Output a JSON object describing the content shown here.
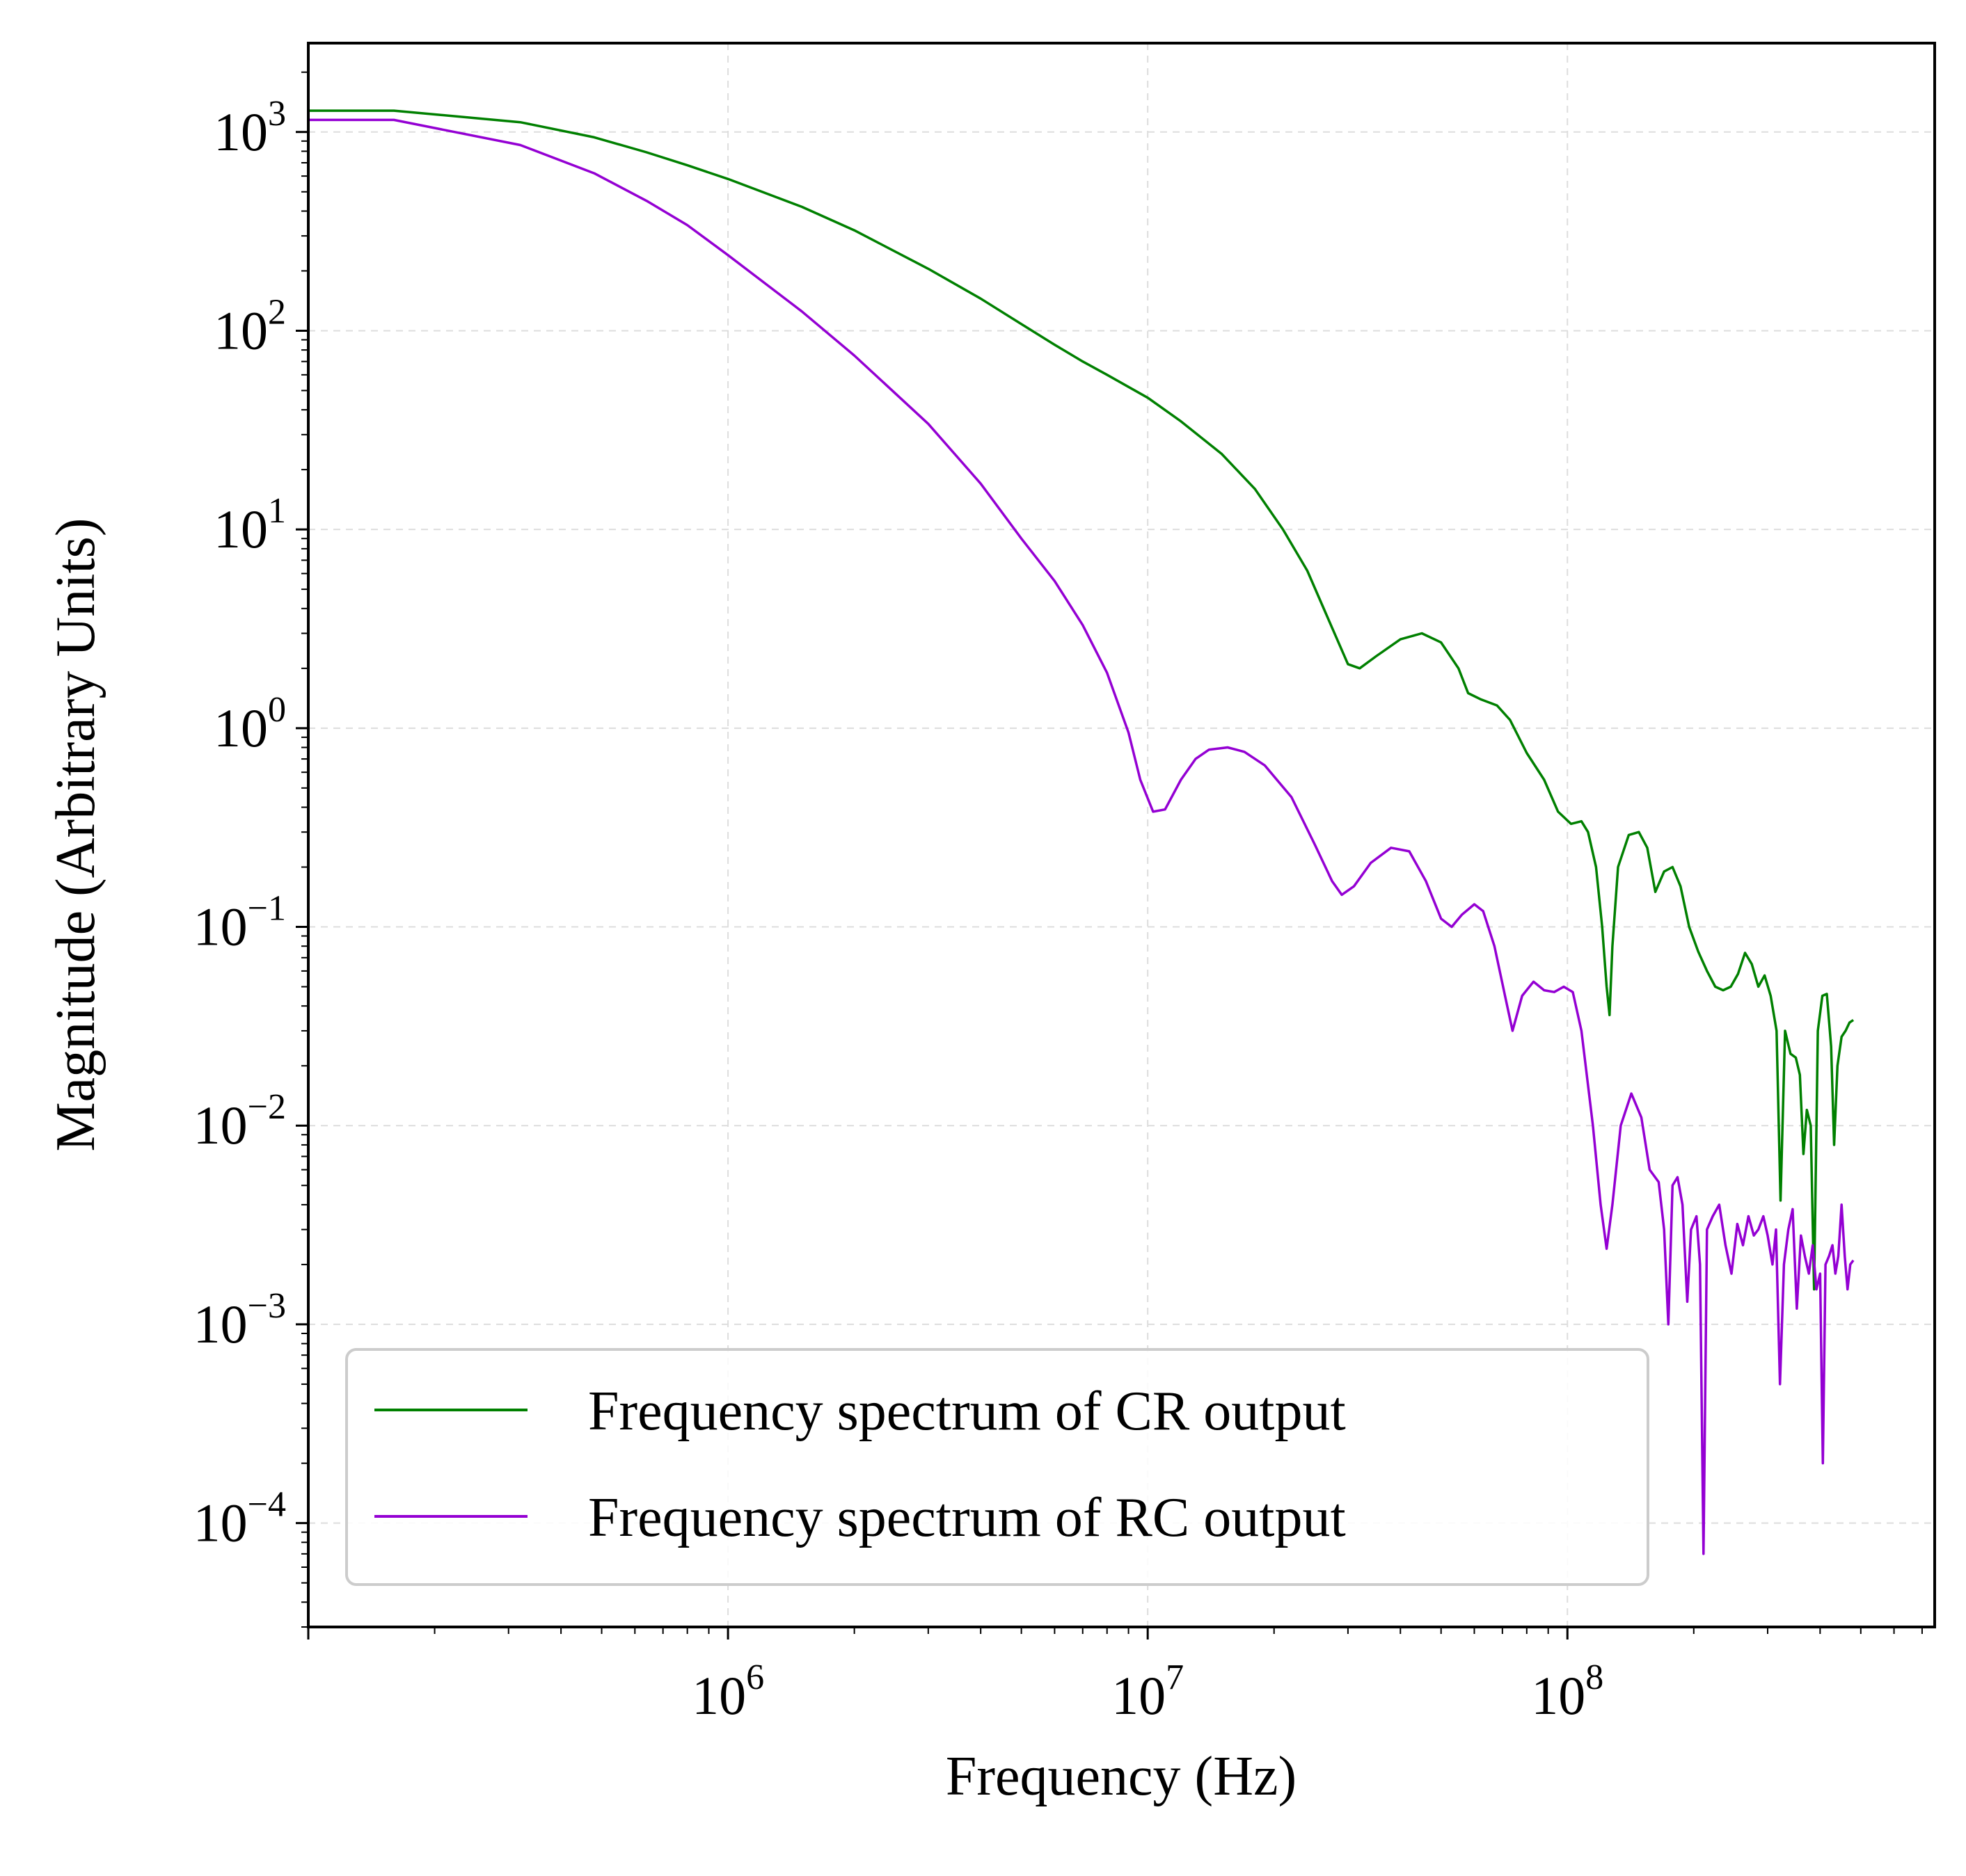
{
  "chart_data": {
    "type": "line",
    "xlabel": "Frequency (Hz)",
    "ylabel": "Magnitude (Arbitrary Units)",
    "xscale": "log",
    "yscale": "log",
    "xlim": [
      100000,
      750000000
    ],
    "ylim": [
      3e-05,
      2800
    ],
    "grid": true,
    "legend_position": "lower-left",
    "x_ticks": [
      {
        "value": 1000000,
        "base": "10",
        "exp": "6"
      },
      {
        "value": 10000000,
        "base": "10",
        "exp": "7"
      },
      {
        "value": 100000000,
        "base": "10",
        "exp": "8"
      }
    ],
    "y_ticks": [
      {
        "value": 0.0001,
        "base": "10",
        "exp": "−4"
      },
      {
        "value": 0.001,
        "base": "10",
        "exp": "−3"
      },
      {
        "value": 0.01,
        "base": "10",
        "exp": "−2"
      },
      {
        "value": 0.1,
        "base": "10",
        "exp": "−1"
      },
      {
        "value": 1,
        "base": "10",
        "exp": "0"
      },
      {
        "value": 10,
        "base": "10",
        "exp": "1"
      },
      {
        "value": 100,
        "base": "10",
        "exp": "2"
      },
      {
        "value": 1000,
        "base": "10",
        "exp": "3"
      }
    ],
    "series": [
      {
        "name": "Frequency spectrum of CR output",
        "color": "#008000",
        "points": [
          [
            100000,
            1280
          ],
          [
            160000,
            1280
          ],
          [
            320000,
            1120
          ],
          [
            480000,
            940
          ],
          [
            640000,
            790
          ],
          [
            800000,
            680
          ],
          [
            1000000,
            580
          ],
          [
            1500000,
            420
          ],
          [
            2000000,
            320
          ],
          [
            3000000,
            205
          ],
          [
            4000000,
            145
          ],
          [
            5000000,
            108
          ],
          [
            6000000,
            85
          ],
          [
            7000000,
            70
          ],
          [
            8000000,
            60
          ],
          [
            10000000,
            46
          ],
          [
            12000000,
            35
          ],
          [
            15000000,
            24
          ],
          [
            18000000,
            16
          ],
          [
            21000000,
            10
          ],
          [
            24000000,
            6.2
          ],
          [
            27000000,
            3.5
          ],
          [
            30000000,
            2.1
          ],
          [
            32000000,
            2.0
          ],
          [
            35000000,
            2.3
          ],
          [
            40000000,
            2.8
          ],
          [
            45000000,
            3.0
          ],
          [
            50000000,
            2.7
          ],
          [
            55000000,
            2.0
          ],
          [
            58000000,
            1.5
          ],
          [
            62000000,
            1.4
          ],
          [
            68000000,
            1.3
          ],
          [
            73000000,
            1.1
          ],
          [
            80000000,
            0.75
          ],
          [
            88000000,
            0.55
          ],
          [
            95000000,
            0.38
          ],
          [
            102000000,
            0.33
          ],
          [
            108000000,
            0.34
          ],
          [
            112000000,
            0.3
          ],
          [
            117000000,
            0.2
          ],
          [
            121000000,
            0.1
          ],
          [
            124000000,
            0.05
          ],
          [
            126000000,
            0.036
          ],
          [
            128000000,
            0.08
          ],
          [
            132000000,
            0.2
          ],
          [
            140000000,
            0.29
          ],
          [
            148000000,
            0.3
          ],
          [
            155000000,
            0.25
          ],
          [
            162000000,
            0.15
          ],
          [
            170000000,
            0.19
          ],
          [
            178000000,
            0.2
          ],
          [
            186000000,
            0.16
          ],
          [
            195000000,
            0.1
          ],
          [
            205000000,
            0.075
          ],
          [
            215000000,
            0.06
          ],
          [
            225000000,
            0.05
          ],
          [
            235000000,
            0.048
          ],
          [
            245000000,
            0.05
          ],
          [
            255000000,
            0.058
          ],
          [
            265000000,
            0.074
          ],
          [
            275000000,
            0.065
          ],
          [
            285000000,
            0.05
          ],
          [
            295000000,
            0.057
          ],
          [
            305000000,
            0.045
          ],
          [
            315000000,
            0.03
          ],
          [
            322000000,
            0.0042
          ],
          [
            330000000,
            0.03
          ],
          [
            340000000,
            0.023
          ],
          [
            350000000,
            0.022
          ],
          [
            358000000,
            0.018
          ],
          [
            365000000,
            0.0072
          ],
          [
            372000000,
            0.012
          ],
          [
            380000000,
            0.01
          ],
          [
            387000000,
            0.0015
          ],
          [
            395000000,
            0.03
          ],
          [
            405000000,
            0.045
          ],
          [
            415000000,
            0.046
          ],
          [
            425000000,
            0.025
          ],
          [
            432000000,
            0.008
          ],
          [
            440000000,
            0.02
          ],
          [
            450000000,
            0.028
          ],
          [
            460000000,
            0.03
          ],
          [
            470000000,
            0.033
          ],
          [
            480000000,
            0.034
          ]
        ]
      },
      {
        "name": "Frequency spectrum of RC output",
        "color": "#9400D3",
        "points": [
          [
            100000,
            1150
          ],
          [
            160000,
            1150
          ],
          [
            320000,
            860
          ],
          [
            480000,
            620
          ],
          [
            640000,
            450
          ],
          [
            800000,
            340
          ],
          [
            1000000,
            240
          ],
          [
            1500000,
            125
          ],
          [
            2000000,
            75
          ],
          [
            3000000,
            34
          ],
          [
            4000000,
            17
          ],
          [
            5000000,
            9
          ],
          [
            6000000,
            5.5
          ],
          [
            7000000,
            3.3
          ],
          [
            8000000,
            1.9
          ],
          [
            9000000,
            0.95
          ],
          [
            9600000,
            0.55
          ],
          [
            10300000,
            0.38
          ],
          [
            11000000,
            0.39
          ],
          [
            12000000,
            0.55
          ],
          [
            13000000,
            0.7
          ],
          [
            14000000,
            0.78
          ],
          [
            15500000,
            0.8
          ],
          [
            17000000,
            0.76
          ],
          [
            19000000,
            0.65
          ],
          [
            22000000,
            0.45
          ],
          [
            25000000,
            0.26
          ],
          [
            27500000,
            0.17
          ],
          [
            29000000,
            0.145
          ],
          [
            31000000,
            0.16
          ],
          [
            34000000,
            0.21
          ],
          [
            38000000,
            0.25
          ],
          [
            42000000,
            0.24
          ],
          [
            46000000,
            0.17
          ],
          [
            50000000,
            0.11
          ],
          [
            53000000,
            0.1
          ],
          [
            56000000,
            0.115
          ],
          [
            60000000,
            0.13
          ],
          [
            63000000,
            0.12
          ],
          [
            67000000,
            0.08
          ],
          [
            71000000,
            0.045
          ],
          [
            74000000,
            0.03
          ],
          [
            78000000,
            0.045
          ],
          [
            83000000,
            0.053
          ],
          [
            88000000,
            0.048
          ],
          [
            93000000,
            0.047
          ],
          [
            98000000,
            0.05
          ],
          [
            103000000,
            0.047
          ],
          [
            108000000,
            0.03
          ],
          [
            115000000,
            0.01
          ],
          [
            120000000,
            0.004
          ],
          [
            124000000,
            0.0024
          ],
          [
            128000000,
            0.004
          ],
          [
            134000000,
            0.01
          ],
          [
            142000000,
            0.0145
          ],
          [
            150000000,
            0.011
          ],
          [
            157000000,
            0.006
          ],
          [
            165000000,
            0.0052
          ],
          [
            170000000,
            0.003
          ],
          [
            174000000,
            0.001
          ],
          [
            178000000,
            0.005
          ],
          [
            183000000,
            0.0055
          ],
          [
            188000000,
            0.004
          ],
          [
            193000000,
            0.0013
          ],
          [
            197000000,
            0.003
          ],
          [
            203000000,
            0.0035
          ],
          [
            207000000,
            0.002
          ],
          [
            211000000,
            7e-05
          ],
          [
            215000000,
            0.003
          ],
          [
            222000000,
            0.0035
          ],
          [
            230000000,
            0.004
          ],
          [
            238000000,
            0.0025
          ],
          [
            246000000,
            0.0018
          ],
          [
            254000000,
            0.0032
          ],
          [
            262000000,
            0.0025
          ],
          [
            270000000,
            0.0035
          ],
          [
            278000000,
            0.0028
          ],
          [
            285000000,
            0.003
          ],
          [
            293000000,
            0.0035
          ],
          [
            300000000,
            0.0028
          ],
          [
            308000000,
            0.002
          ],
          [
            314000000,
            0.003
          ],
          [
            321000000,
            0.0005
          ],
          [
            328000000,
            0.002
          ],
          [
            336000000,
            0.003
          ],
          [
            344000000,
            0.0038
          ],
          [
            352000000,
            0.0012
          ],
          [
            360000000,
            0.0028
          ],
          [
            368000000,
            0.0022
          ],
          [
            376000000,
            0.0018
          ],
          [
            384000000,
            0.0025
          ],
          [
            392000000,
            0.0015
          ],
          [
            400000000,
            0.0018
          ],
          [
            406000000,
            0.0002
          ],
          [
            412000000,
            0.002
          ],
          [
            420000000,
            0.0022
          ],
          [
            428000000,
            0.0025
          ],
          [
            435000000,
            0.0018
          ],
          [
            442000000,
            0.0022
          ],
          [
            450000000,
            0.004
          ],
          [
            458000000,
            0.0022
          ],
          [
            465000000,
            0.0015
          ],
          [
            472000000,
            0.002
          ],
          [
            480000000,
            0.0021
          ]
        ]
      }
    ]
  }
}
